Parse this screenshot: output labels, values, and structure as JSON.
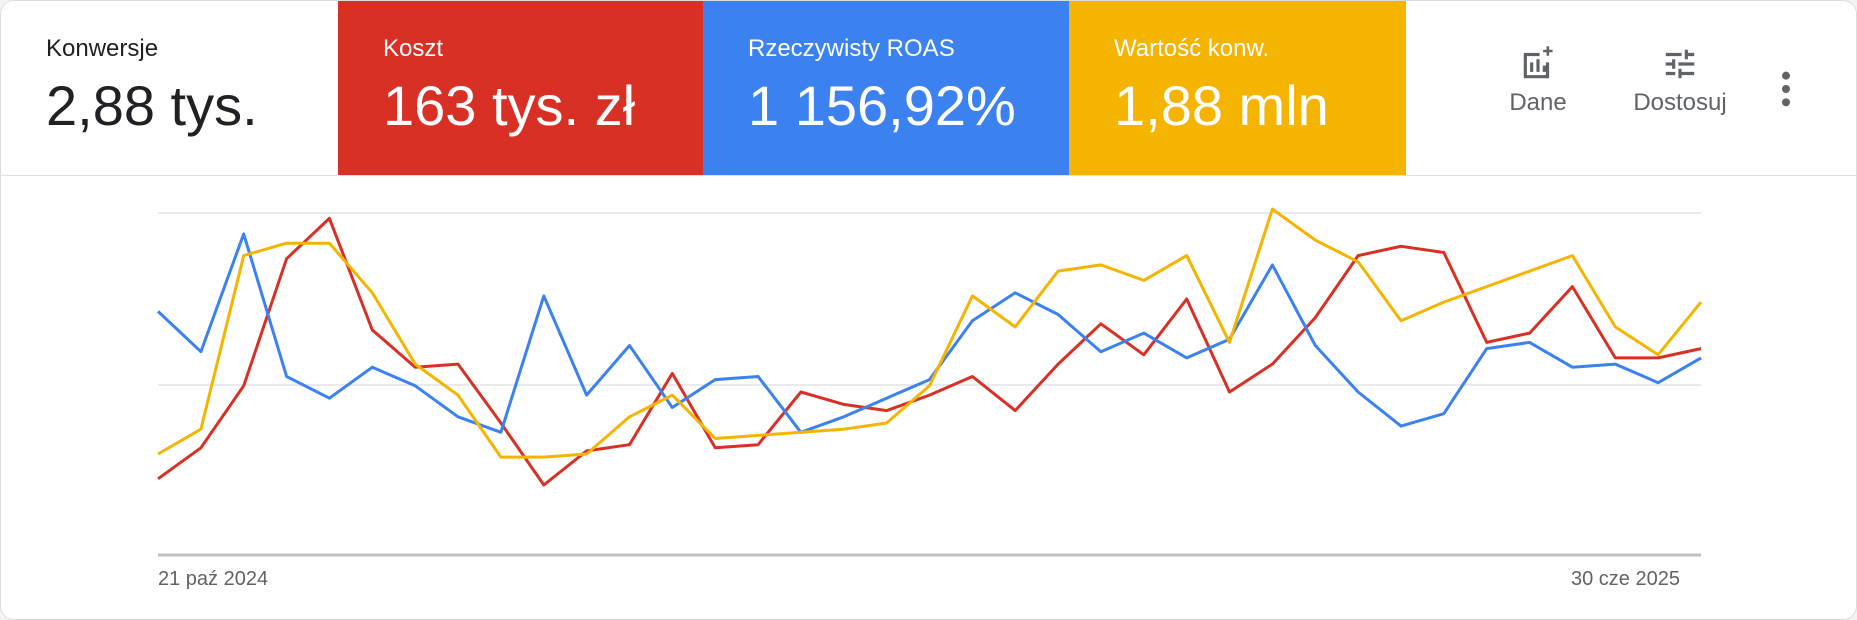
{
  "metrics": [
    {
      "label": "Konwersje",
      "value": "2,88 tys."
    },
    {
      "label": "Koszt",
      "value": "163 tys. zł",
      "color": "#d93025"
    },
    {
      "label": "Rzeczywisty ROAS",
      "value": "1 156,92%",
      "color": "#3b82f0"
    },
    {
      "label": "Wartość konw.",
      "value": "1,88 mln",
      "color": "#f4b400"
    }
  ],
  "actions": {
    "dane_label": "Dane",
    "dostosuj_label": "Dostosuj",
    "dane_icon": "add-chart-icon",
    "dostosuj_icon": "tune-sliders-icon",
    "more_icon": "more-vert-icon"
  },
  "chart_data": {
    "type": "line",
    "x_labels": [
      "21 paź 2024",
      "30 cze 2025"
    ],
    "grid": true,
    "y_scale": "relative",
    "series": [
      {
        "color": "#d93025",
        "values": [
          0.12,
          0.22,
          0.42,
          0.83,
          0.96,
          0.6,
          0.48,
          0.49,
          0.3,
          0.1,
          0.21,
          0.23,
          0.46,
          0.22,
          0.23,
          0.4,
          0.36,
          0.34,
          0.39,
          0.45,
          0.34,
          0.49,
          0.62,
          0.52,
          0.7,
          0.4,
          0.49,
          0.64,
          0.84,
          0.87,
          0.85,
          0.56,
          0.59,
          0.74,
          0.51,
          0.51,
          0.54
        ]
      },
      {
        "color": "#3b82f0",
        "values": [
          0.66,
          0.53,
          0.91,
          0.45,
          0.38,
          0.48,
          0.42,
          0.32,
          0.27,
          0.71,
          0.39,
          0.55,
          0.35,
          0.44,
          0.45,
          0.27,
          0.32,
          0.38,
          0.44,
          0.63,
          0.72,
          0.65,
          0.53,
          0.59,
          0.51,
          0.57,
          0.81,
          0.55,
          0.4,
          0.29,
          0.33,
          0.54,
          0.56,
          0.48,
          0.49,
          0.43,
          0.51
        ]
      },
      {
        "color": "#f4b400",
        "values": [
          0.2,
          0.28,
          0.84,
          0.88,
          0.88,
          0.72,
          0.49,
          0.39,
          0.19,
          0.19,
          0.2,
          0.32,
          0.39,
          0.25,
          0.26,
          0.27,
          0.28,
          0.3,
          0.42,
          0.71,
          0.61,
          0.79,
          0.81,
          0.76,
          0.84,
          0.56,
          0.99,
          0.89,
          0.82,
          0.63,
          0.69,
          0.74,
          0.79,
          0.84,
          0.61,
          0.52,
          0.69
        ]
      }
    ]
  }
}
